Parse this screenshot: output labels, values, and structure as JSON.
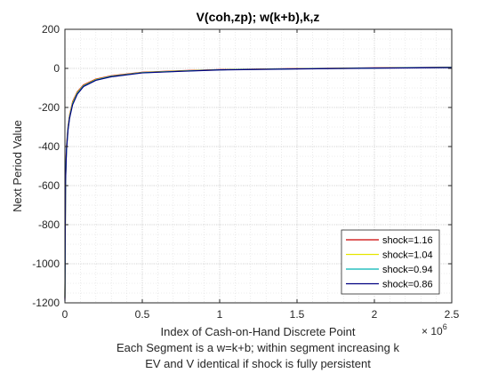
{
  "chart_data": {
    "type": "line",
    "title": "V(coh,zp); w(k+b),k,z",
    "ylabel": "Next Period Value",
    "xlabel": "Index of Cash-on-Hand Discrete Point",
    "xlabel_line2": "Each Segment is a w=k+b; within segment increasing k",
    "xlabel_line3": "EV and V identical if shock is fully persistent",
    "x_exponent_label": "× 10",
    "x_exponent_power": "6",
    "xlim": [
      0,
      2.5
    ],
    "ylim": [
      -1200,
      200
    ],
    "x_ticks": [
      0,
      0.5,
      1,
      1.5,
      2,
      2.5
    ],
    "x_tick_labels": [
      "0",
      "0.5",
      "1",
      "1.5",
      "2",
      "2.5"
    ],
    "y_ticks": [
      200,
      0,
      -200,
      -400,
      -600,
      -800,
      -1000,
      -1200
    ],
    "y_tick_labels": [
      "200",
      "0",
      "-200",
      "-400",
      "-600",
      "-800",
      "-1000",
      "-1200"
    ],
    "grid": true,
    "minor_grid": true,
    "legend_position": "bottom-right",
    "series": [
      {
        "name": "shock=1.16",
        "color": "#cc0000",
        "x": [
          0,
          0.004,
          0.01,
          0.02,
          0.03,
          0.05,
          0.08,
          0.12,
          0.2,
          0.3,
          0.5,
          0.75,
          1.0,
          1.5,
          2.0,
          2.5
        ],
        "y": [
          -1180,
          -560,
          -400,
          -300,
          -240,
          -170,
          -120,
          -85,
          -55,
          -38,
          -20,
          -12,
          -6,
          -1,
          3,
          6
        ]
      },
      {
        "name": "shock=1.04",
        "color": "#e6e600",
        "x": [
          0,
          0.004,
          0.01,
          0.02,
          0.03,
          0.05,
          0.08,
          0.12,
          0.2,
          0.3,
          0.5,
          0.75,
          1.0,
          1.5,
          2.0,
          2.5
        ],
        "y": [
          -1170,
          -570,
          -410,
          -305,
          -245,
          -175,
          -124,
          -88,
          -57,
          -40,
          -21,
          -13,
          -7,
          -2,
          2,
          5
        ]
      },
      {
        "name": "shock=0.94",
        "color": "#00b3b3",
        "x": [
          0,
          0.004,
          0.01,
          0.02,
          0.03,
          0.05,
          0.08,
          0.12,
          0.2,
          0.3,
          0.5,
          0.75,
          1.0,
          1.5,
          2.0,
          2.5
        ],
        "y": [
          -1175,
          -575,
          -415,
          -310,
          -250,
          -180,
          -128,
          -90,
          -59,
          -41,
          -22,
          -14,
          -7,
          -2,
          2,
          5
        ]
      },
      {
        "name": "shock=0.86",
        "color": "#000080",
        "x": [
          0,
          0.004,
          0.01,
          0.02,
          0.03,
          0.05,
          0.08,
          0.12,
          0.2,
          0.3,
          0.5,
          0.75,
          1.0,
          1.5,
          2.0,
          2.5
        ],
        "y": [
          -1190,
          -580,
          -420,
          -315,
          -255,
          -185,
          -132,
          -93,
          -61,
          -43,
          -23,
          -15,
          -8,
          -3,
          1,
          4
        ]
      }
    ]
  }
}
